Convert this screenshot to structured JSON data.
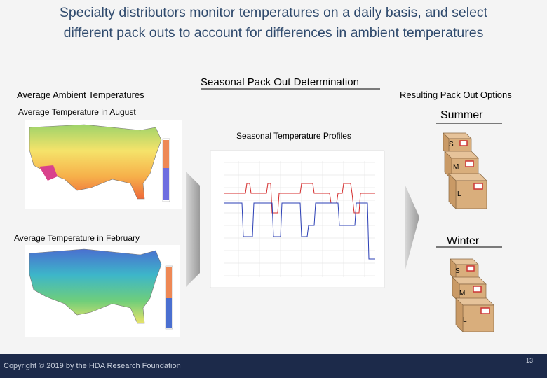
{
  "title": "Specialty distributors monitor temperatures on a daily basis, and select different pack outs to account for differences in ambient temperatures",
  "section_title": "Seasonal Pack Out Determination",
  "left": {
    "heading": "Average Ambient Temperatures",
    "august_label": "Average Temperature in August",
    "february_label": "Average Temperature in February"
  },
  "middle": {
    "heading": "Seasonal Temperature Profiles"
  },
  "right": {
    "heading": "Resulting Pack Out Options",
    "summer": {
      "label": "Summer",
      "boxes": [
        "S",
        "M",
        "L"
      ]
    },
    "winter": {
      "label": "Winter",
      "boxes": [
        "S",
        "M",
        "L"
      ]
    }
  },
  "footer": {
    "copyright": "Copyright © 2019 by the HDA Research Foundation",
    "page_number": "13"
  }
}
